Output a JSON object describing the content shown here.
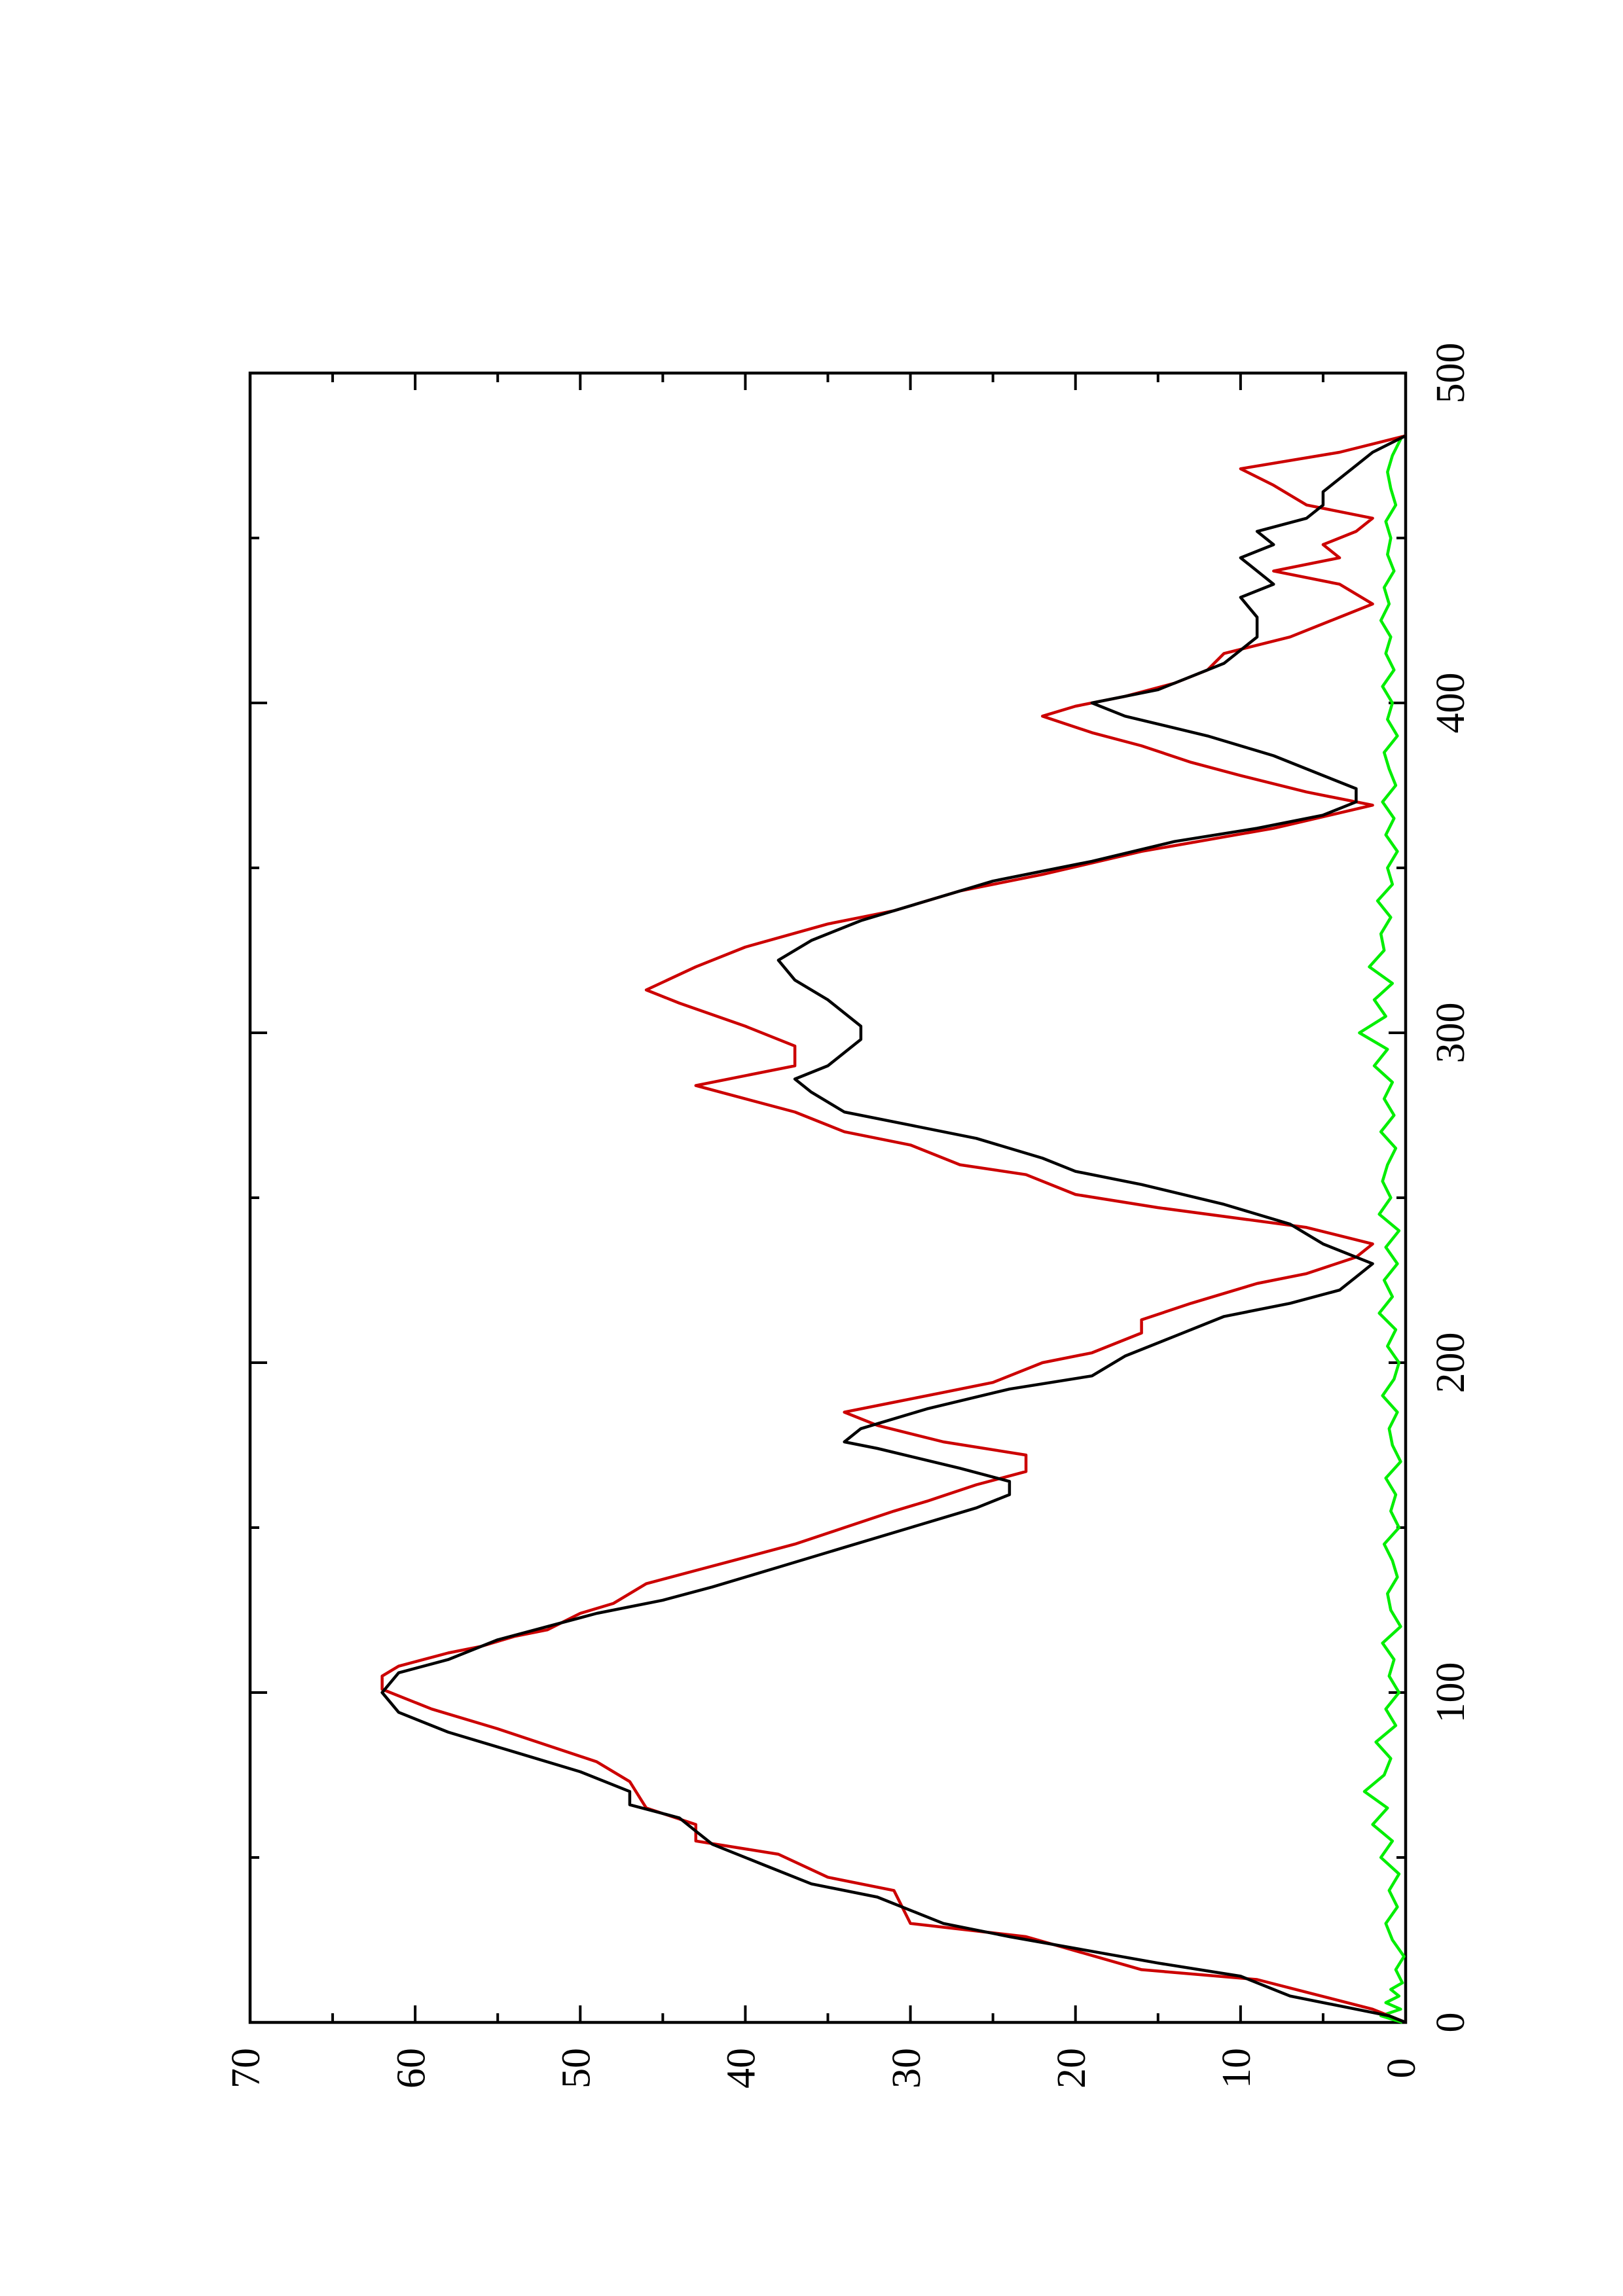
{
  "chart_data": {
    "type": "line",
    "orientation": "rotated-90-ccw",
    "title": "",
    "xlabel": "",
    "ylabel": "",
    "xlim": [
      0,
      500
    ],
    "ylim": [
      0,
      70
    ],
    "x_ticks": [
      0,
      100,
      200,
      300,
      400,
      500
    ],
    "x_ticks_minor": [
      50,
      150,
      250,
      350,
      450
    ],
    "y_ticks": [
      0,
      10,
      20,
      30,
      40,
      50,
      60,
      70
    ],
    "y_ticks_minor": [
      5,
      15,
      25,
      35,
      45,
      55,
      65
    ],
    "grid": false,
    "legend": "none",
    "series": [
      {
        "color": "#cc0000",
        "x": [
          0,
          4,
          13,
          16,
          26,
          30,
          40,
          44,
          51,
          55,
          60,
          65,
          73,
          79,
          84,
          89,
          95,
          101,
          105,
          108,
          112,
          114,
          117,
          119,
          124,
          127,
          133,
          137,
          141,
          145,
          150,
          155,
          158,
          163,
          167,
          172,
          176,
          181,
          185,
          188,
          191,
          194,
          200,
          203,
          209,
          213,
          218,
          224,
          227,
          232,
          236,
          241,
          247,
          251,
          257,
          260,
          266,
          270,
          276,
          280,
          284,
          290,
          296,
          302,
          309,
          313,
          320,
          326,
          333,
          337,
          343,
          348,
          355,
          362,
          369,
          373,
          378,
          382,
          387,
          391,
          396,
          399,
          402,
          406,
          410,
          415,
          420,
          426,
          430,
          436,
          440,
          444,
          448,
          452,
          456,
          460,
          466,
          471,
          476,
          481
        ],
        "y": [
          0,
          2,
          9,
          16,
          23,
          30,
          31,
          35,
          38,
          43,
          43,
          46,
          47,
          49,
          52,
          55,
          59,
          62,
          62,
          61,
          58,
          56,
          54,
          52,
          50,
          48,
          46,
          43,
          40,
          37,
          34,
          31,
          29,
          26,
          23,
          23,
          28,
          32,
          34,
          31,
          28,
          25,
          22,
          19,
          16,
          16,
          13,
          9,
          6,
          3,
          2,
          6,
          15,
          20,
          23,
          27,
          30,
          34,
          37,
          40,
          43,
          37,
          37,
          40,
          44,
          46,
          43,
          40,
          35,
          31,
          27,
          22,
          16,
          8,
          2,
          6,
          10,
          13,
          16,
          19,
          22,
          20,
          17,
          14,
          12,
          11,
          7,
          4,
          2,
          4,
          8,
          4,
          5,
          3,
          2,
          6,
          8,
          10,
          4,
          0
        ]
      },
      {
        "color": "#000000",
        "x": [
          0,
          2,
          4,
          8,
          14,
          18,
          26,
          30,
          38,
          42,
          48,
          54,
          58,
          62,
          66,
          70,
          76,
          82,
          88,
          94,
          100,
          106,
          110,
          116,
          120,
          124,
          128,
          132,
          138,
          144,
          150,
          156,
          160,
          164,
          168,
          174,
          176,
          180,
          186,
          192,
          196,
          202,
          208,
          214,
          218,
          222,
          226,
          230,
          236,
          242,
          248,
          254,
          258,
          262,
          268,
          272,
          276,
          282,
          286,
          290,
          294,
          298,
          302,
          306,
          310,
          316,
          322,
          328,
          334,
          340,
          346,
          352,
          358,
          362,
          366,
          370,
          374,
          378,
          384,
          390,
          396,
          400,
          404,
          408,
          412,
          416,
          420,
          426,
          432,
          436,
          440,
          444,
          448,
          452,
          456,
          460,
          464,
          468,
          472,
          476,
          481
        ],
        "y": [
          0,
          1,
          3,
          7,
          10,
          15,
          24,
          28,
          32,
          36,
          39,
          42,
          43,
          44,
          47,
          47,
          50,
          54,
          58,
          61,
          62,
          61,
          58,
          55,
          52,
          49,
          45,
          42,
          38,
          34,
          30,
          26,
          24,
          24,
          27,
          32,
          34,
          33,
          29,
          24,
          19,
          17,
          14,
          11,
          7,
          4,
          3,
          2,
          5,
          7,
          11,
          16,
          20,
          22,
          26,
          30,
          34,
          36,
          37,
          35,
          34,
          33,
          33,
          34,
          35,
          37,
          38,
          36,
          33,
          29,
          25,
          19,
          14,
          9,
          5,
          3,
          3,
          5,
          8,
          12,
          17,
          19,
          15,
          13,
          11,
          10,
          9,
          9,
          10,
          8,
          9,
          10,
          8,
          9,
          6,
          5,
          5,
          4,
          3,
          2,
          0
        ]
      },
      {
        "color": "#00ee00",
        "x": [
          0,
          2,
          4,
          6,
          8,
          10,
          12,
          16,
          20,
          25,
          30,
          35,
          40,
          45,
          50,
          55,
          60,
          65,
          70,
          75,
          80,
          85,
          90,
          95,
          100,
          105,
          110,
          115,
          120,
          125,
          130,
          135,
          140,
          145,
          150,
          155,
          160,
          165,
          170,
          175,
          180,
          185,
          190,
          195,
          200,
          205,
          210,
          215,
          220,
          225,
          230,
          235,
          240,
          245,
          250,
          255,
          260,
          265,
          270,
          275,
          280,
          285,
          290,
          295,
          300,
          305,
          310,
          315,
          320,
          325,
          330,
          335,
          340,
          345,
          350,
          355,
          360,
          365,
          370,
          375,
          380,
          385,
          390,
          395,
          400,
          405,
          410,
          415,
          420,
          425,
          430,
          435,
          440,
          445,
          450,
          455,
          460,
          465,
          470,
          475,
          481
        ],
        "y": [
          0.2,
          1.5,
          0.3,
          1.2,
          0.4,
          0.9,
          0.2,
          0.6,
          0.1,
          0.8,
          1.2,
          0.5,
          1.0,
          0.4,
          1.5,
          0.8,
          2.0,
          1.1,
          2.5,
          1.3,
          0.9,
          1.8,
          0.6,
          1.2,
          0.4,
          1.0,
          0.7,
          1.4,
          0.3,
          0.9,
          1.1,
          0.5,
          0.8,
          1.3,
          0.4,
          0.9,
          0.6,
          1.2,
          0.3,
          0.8,
          1.0,
          0.5,
          1.4,
          0.7,
          0.4,
          1.1,
          0.6,
          1.6,
          0.8,
          1.3,
          0.5,
          1.2,
          0.4,
          1.6,
          0.9,
          1.4,
          1.1,
          0.6,
          1.5,
          0.7,
          1.3,
          0.8,
          1.9,
          1.1,
          2.8,
          1.2,
          1.9,
          0.8,
          2.2,
          1.3,
          1.5,
          0.9,
          1.7,
          0.8,
          1.1,
          0.5,
          1.2,
          0.7,
          1.4,
          0.6,
          1.0,
          1.3,
          0.5,
          1.1,
          0.8,
          1.4,
          0.7,
          1.2,
          0.9,
          1.5,
          1.0,
          1.3,
          0.7,
          1.1,
          0.9,
          1.2,
          0.6,
          0.9,
          1.1,
          0.8,
          0.2
        ]
      }
    ]
  }
}
